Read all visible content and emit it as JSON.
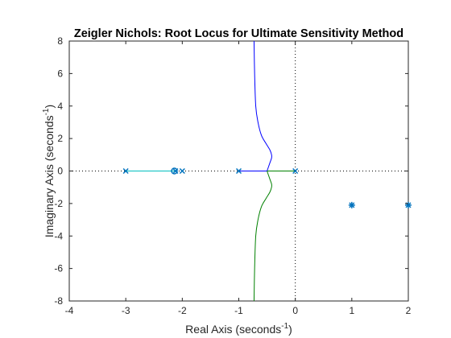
{
  "chart_data": {
    "type": "line",
    "title": "Zeigler Nichols: Root Locus for Ultimate Sensitivity Method",
    "xlabel": {
      "main": "Real Axis (seconds",
      "sup": "-1",
      "end": ")"
    },
    "ylabel": {
      "main": "Imaginary Axis (seconds",
      "sup": "-1",
      "end": ")"
    },
    "xlim": [
      -4,
      2
    ],
    "ylim": [
      -8,
      8
    ],
    "xticks": [
      -4,
      -3,
      -2,
      -1,
      0,
      1,
      2
    ],
    "yticks": [
      -8,
      -6,
      -4,
      -2,
      0,
      2,
      4,
      6,
      8
    ],
    "grid": false,
    "colors": {
      "branch_upper": "#0000ff",
      "branch_lower": "#008000",
      "branch_left": "#00bfbf",
      "branch_mid": "#0000ff",
      "branch_right": "#008000",
      "markers": "#0072bd",
      "zero_lines": "#000000"
    },
    "series": [
      {
        "points": [
          [
            -0.5,
            0
          ],
          [
            -0.45,
            0.5
          ],
          [
            -0.42,
            0.8
          ],
          [
            -0.42,
            1.0
          ],
          [
            -0.45,
            1.3
          ],
          [
            -0.52,
            1.7
          ],
          [
            -0.6,
            2.2
          ],
          [
            -0.66,
            3.0
          ],
          [
            -0.7,
            4.0
          ],
          [
            -0.72,
            6.0
          ],
          [
            -0.73,
            8.0
          ]
        ]
      },
      {
        "points": [
          [
            -0.5,
            0
          ],
          [
            -0.45,
            -0.5
          ],
          [
            -0.42,
            -0.8
          ],
          [
            -0.42,
            -1.0
          ],
          [
            -0.45,
            -1.3
          ],
          [
            -0.52,
            -1.7
          ],
          [
            -0.6,
            -2.2
          ],
          [
            -0.66,
            -3.0
          ],
          [
            -0.7,
            -4.0
          ],
          [
            -0.72,
            -6.0
          ],
          [
            -0.73,
            -8.0
          ]
        ]
      },
      {
        "points": [
          [
            -3,
            0
          ],
          [
            -2.13,
            0
          ]
        ]
      },
      {
        "points": [
          [
            -1,
            0
          ],
          [
            -0.5,
            0
          ]
        ]
      },
      {
        "points": [
          [
            0,
            0
          ],
          [
            -0.5,
            0
          ]
        ]
      }
    ],
    "poles": [
      [
        -3,
        0
      ],
      [
        -2,
        0
      ],
      [
        -1,
        0
      ],
      [
        0,
        0
      ],
      [
        -2.12,
        0
      ]
    ],
    "zeros": [
      [
        -2.14,
        0
      ]
    ],
    "closed_loop_markers": [
      [
        1,
        -2.1
      ],
      [
        2,
        -2.1
      ]
    ]
  }
}
